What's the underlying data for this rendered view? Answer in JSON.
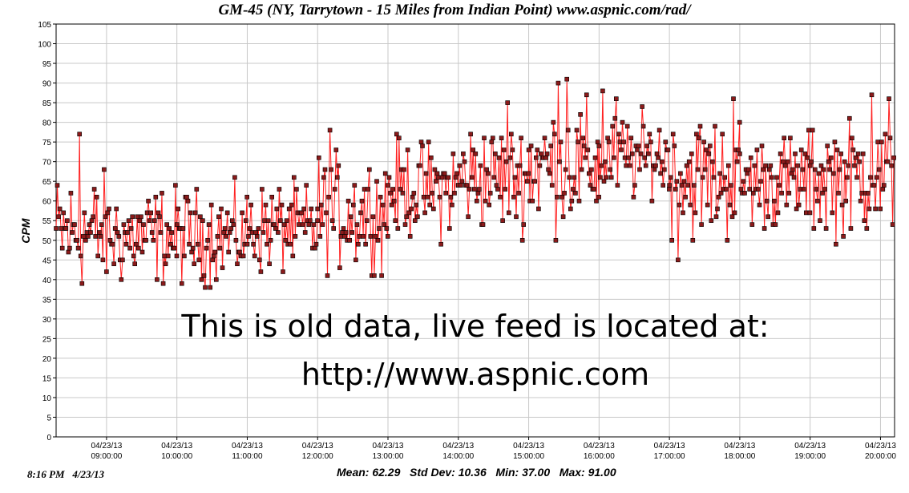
{
  "chart_data": {
    "type": "line",
    "title": "GM-45 (NY, Tarrytown - 15 Miles from Indian Point) www.aspnic.com/rad/",
    "ylabel": "CPM",
    "xlabel": "",
    "ylim": [
      0,
      105
    ],
    "xlim": [
      "04/23/13 08:17",
      "04/23/13 20:12"
    ],
    "grid": true,
    "y_ticks": [
      "0",
      "5",
      "10",
      "15",
      "20",
      "25",
      "30",
      "35",
      "40",
      "45",
      "50",
      "55",
      "60",
      "65",
      "70",
      "75",
      "80",
      "85",
      "90",
      "95",
      "100",
      "105"
    ],
    "x_tick_dates": [
      "04/23/13",
      "04/23/13",
      "04/23/13",
      "04/23/13",
      "04/23/13",
      "04/23/13",
      "04/23/13",
      "04/23/13",
      "04/23/13",
      "04/23/13",
      "04/23/13",
      "04/23/13"
    ],
    "x_tick_times": [
      "09:00:00",
      "10:00:00",
      "11:00:00",
      "12:00:00",
      "13:00:00",
      "14:00:00",
      "15:00:00",
      "16:00:00",
      "17:00:00",
      "18:00:00",
      "19:00:00",
      "20:00:00"
    ],
    "series": [
      {
        "color": "#ff2020",
        "marker_fill": "#8b1a1a",
        "segments": [
          {
            "period": "08:17-09:00",
            "min": 39,
            "max": 77,
            "approx_mean": 52,
            "peaks": [
              {
                "time": "08:37",
                "value": 77
              }
            ]
          },
          {
            "period": "09:00-10:00",
            "min": 37,
            "max": 69,
            "approx_mean": 51
          },
          {
            "period": "10:00-11:00",
            "min": 38,
            "max": 68,
            "approx_mean": 51
          },
          {
            "period": "11:00-12:00",
            "min": 40,
            "max": 69,
            "approx_mean": 53
          },
          {
            "period": "12:00-13:00",
            "min": 41,
            "max": 78,
            "approx_mean": 57,
            "peaks": [
              {
                "time": "12:11",
                "value": 78
              }
            ]
          },
          {
            "period": "13:00-14:00",
            "min": 48,
            "max": 80,
            "approx_mean": 63
          },
          {
            "period": "14:00-15:00",
            "min": 50,
            "max": 85,
            "approx_mean": 66,
            "peaks": [
              {
                "time": "14:42",
                "value": 85
              }
            ]
          },
          {
            "period": "15:00-16:00",
            "min": 50,
            "max": 91,
            "approx_mean": 69,
            "peaks": [
              {
                "time": "15:25",
                "value": 90
              },
              {
                "time": "15:33",
                "value": 91
              }
            ]
          },
          {
            "period": "16:00-17:00",
            "min": 60,
            "max": 88,
            "approx_mean": 71,
            "peaks": [
              {
                "time": "16:03",
                "value": 88
              },
              {
                "time": "16:15",
                "value": 86
              }
            ]
          },
          {
            "period": "17:00-18:00",
            "min": 45,
            "max": 86,
            "approx_mean": 66,
            "peaks": [
              {
                "time": "17:55",
                "value": 86
              }
            ],
            "dips": [
              {
                "time": "17:07",
                "value": 45
              }
            ]
          },
          {
            "period": "18:00-19:00",
            "min": 47,
            "max": 78,
            "approx_mean": 65
          },
          {
            "period": "19:00-20:12",
            "min": 49,
            "max": 87,
            "approx_mean": 66,
            "peaks": [
              {
                "time": "19:52",
                "value": 87
              },
              {
                "time": "20:07",
                "value": 86
              }
            ]
          }
        ]
      }
    ],
    "annotations": [
      "This is old data, live feed is located at:",
      "http://www.aspnic.com"
    ],
    "stats": {
      "mean": "62.29",
      "std_dev": "10.36",
      "min": "37.00",
      "max": "91.00"
    }
  },
  "footer": {
    "timestamp": "8:16 PM   4/23/13",
    "stats_text": "Mean: 62.29   Std Dev: 10.36   Min: 37.00   Max: 91.00"
  }
}
